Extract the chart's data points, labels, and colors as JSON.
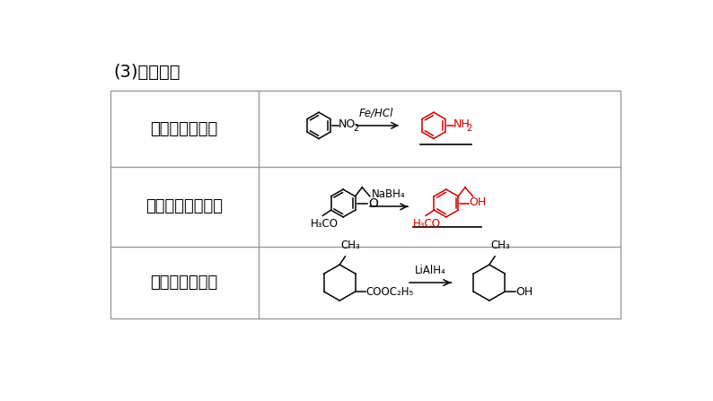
{
  "title": "(3)还原反应",
  "bg_color": "#ffffff",
  "border_color": "#999999",
  "text_color": "#000000",
  "red_color": "#cc0000",
  "row_labels": [
    "硝基还原为氨基",
    "酮羰基还原成羟基",
    "酯基还原成羟基"
  ],
  "title_fontsize": 14,
  "label_fontsize": 13,
  "chem_fontsize": 9.5
}
